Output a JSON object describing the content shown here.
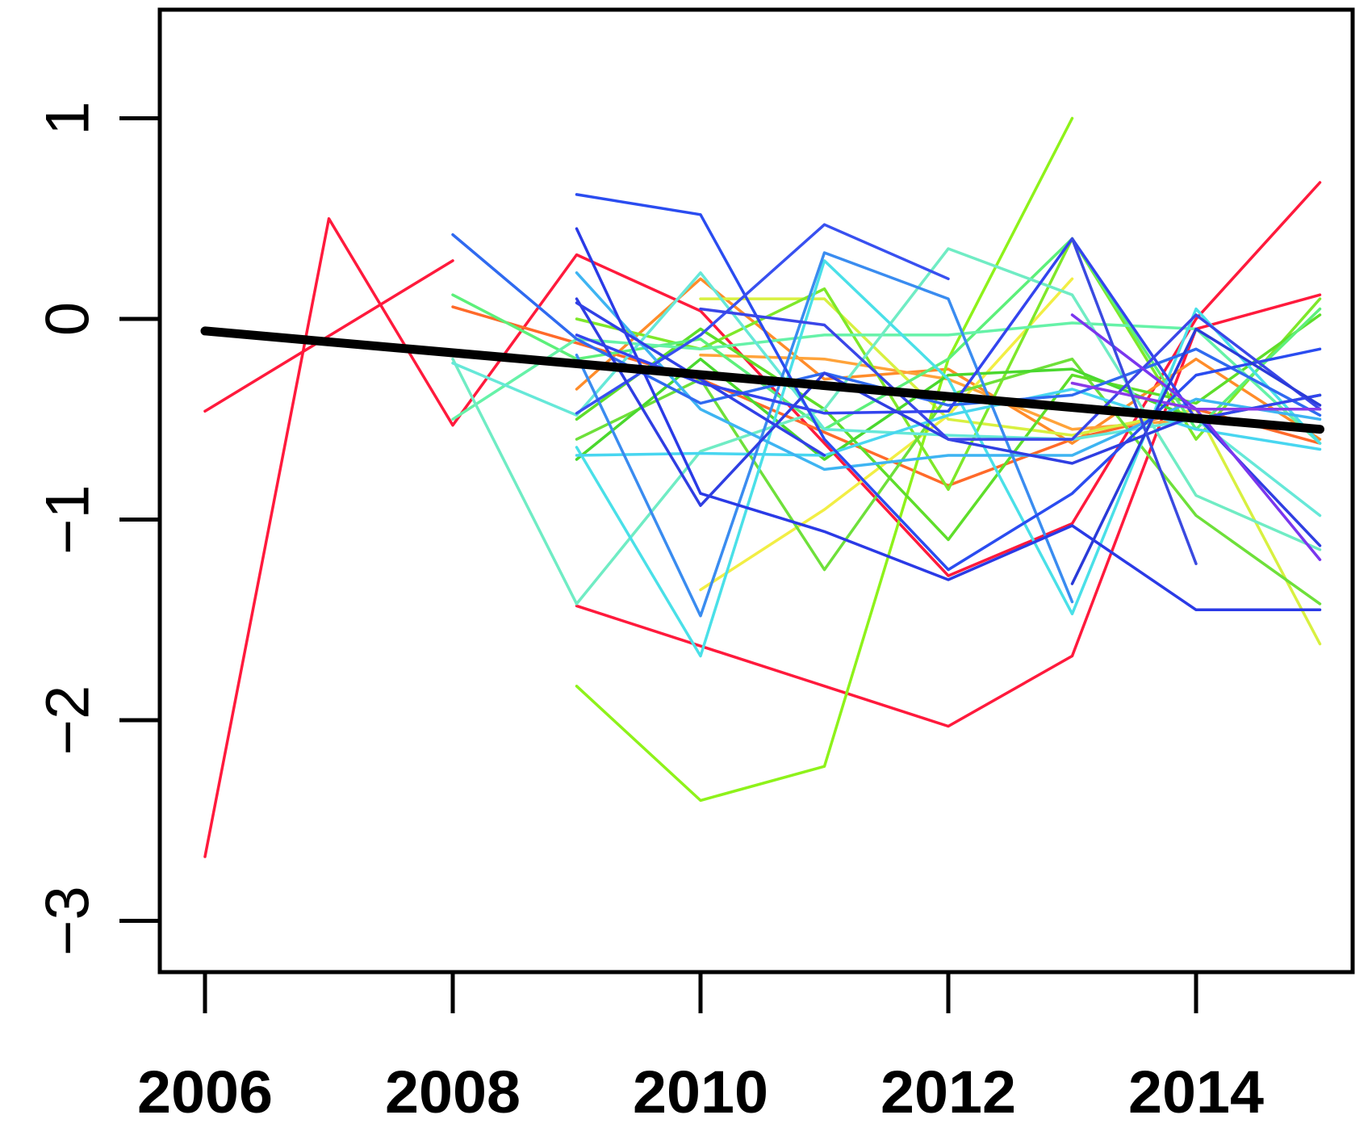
{
  "chart_data": {
    "type": "line",
    "title": "",
    "xlabel": "",
    "ylabel": "",
    "xlim": [
      2005.8,
      2015.4
    ],
    "ylim": [
      -3.2,
      1.6
    ],
    "grid": false,
    "legend": "none",
    "x_ticks": [
      2006,
      2008,
      2010,
      2012,
      2014
    ],
    "x_tick_labels": [
      "2006",
      "2008",
      "2010",
      "2012",
      "2014"
    ],
    "y_ticks": [
      -3,
      -2,
      -1,
      0,
      1
    ],
    "y_tick_labels": [
      "−3",
      "−2",
      "−1",
      "0",
      "1"
    ],
    "trend": {
      "color": "#000000",
      "points": [
        [
          2006,
          -0.06
        ],
        [
          2015,
          -0.55
        ]
      ]
    },
    "series": [
      {
        "color": "#ff1a3c",
        "points": [
          [
            2006,
            -2.68
          ],
          [
            2007,
            0.5
          ],
          [
            2008,
            -0.53
          ],
          [
            2009,
            0.32
          ],
          [
            2010,
            0.04
          ],
          [
            2012,
            -1.28
          ],
          [
            2013,
            -1.02
          ],
          [
            2014,
            0.0
          ],
          [
            2015,
            0.68
          ]
        ]
      },
      {
        "color": "#ff1a3c",
        "points": [
          [
            2006,
            -0.46
          ],
          [
            2008,
            0.29
          ]
        ]
      },
      {
        "color": "#ff1a3c",
        "points": [
          [
            2009,
            -1.43
          ],
          [
            2012,
            -2.03
          ],
          [
            2013,
            -1.68
          ],
          [
            2014,
            -0.05
          ],
          [
            2015,
            0.12
          ]
        ]
      },
      {
        "color": "#ff6a2a",
        "points": [
          [
            2008,
            0.06
          ],
          [
            2009,
            -0.12
          ],
          [
            2010,
            -0.3
          ],
          [
            2012,
            -0.83
          ],
          [
            2013,
            -0.6
          ],
          [
            2014,
            -0.45
          ],
          [
            2015,
            -0.62
          ]
        ]
      },
      {
        "color": "#ff8c2a",
        "points": [
          [
            2009,
            -0.35
          ],
          [
            2010,
            0.2
          ],
          [
            2011,
            -0.3
          ],
          [
            2012,
            -0.25
          ],
          [
            2013,
            -0.62
          ],
          [
            2014,
            -0.2
          ],
          [
            2015,
            -0.6
          ]
        ]
      },
      {
        "color": "#ffa33a",
        "points": [
          [
            2010,
            -0.18
          ],
          [
            2011,
            -0.2
          ],
          [
            2012,
            -0.3
          ],
          [
            2013,
            -0.55
          ],
          [
            2014,
            -0.5
          ]
        ]
      },
      {
        "color": "#f2ee44",
        "points": [
          [
            2010,
            -1.35
          ],
          [
            2011,
            -0.95
          ],
          [
            2012,
            -0.48
          ],
          [
            2013,
            0.2
          ]
        ]
      },
      {
        "color": "#d8f040",
        "points": [
          [
            2010,
            0.1
          ],
          [
            2011,
            0.1
          ],
          [
            2012,
            -0.5
          ],
          [
            2013,
            -0.58
          ],
          [
            2014,
            -0.45
          ],
          [
            2015,
            -1.62
          ]
        ]
      },
      {
        "color": "#8ef21a",
        "points": [
          [
            2009,
            -1.83
          ],
          [
            2010,
            -2.4
          ],
          [
            2011,
            -2.23
          ],
          [
            2012,
            -0.2
          ],
          [
            2013,
            1.0
          ]
        ]
      },
      {
        "color": "#7ee82a",
        "points": [
          [
            2009,
            0.0
          ],
          [
            2010,
            -0.15
          ],
          [
            2011,
            0.15
          ],
          [
            2012,
            -0.85
          ],
          [
            2013,
            0.4
          ],
          [
            2014,
            -0.6
          ],
          [
            2015,
            0.1
          ]
        ]
      },
      {
        "color": "#6ee03a",
        "points": [
          [
            2009,
            -0.6
          ],
          [
            2010,
            -0.3
          ],
          [
            2011,
            -1.25
          ],
          [
            2012,
            -0.38
          ],
          [
            2013,
            -0.2
          ],
          [
            2014,
            -0.98
          ],
          [
            2015,
            -1.42
          ]
        ]
      },
      {
        "color": "#5ede2a",
        "points": [
          [
            2009,
            -0.5
          ],
          [
            2010,
            -0.05
          ],
          [
            2011,
            -0.45
          ],
          [
            2012,
            -1.1
          ],
          [
            2013,
            -0.28
          ],
          [
            2014,
            -0.42
          ],
          [
            2015,
            0.02
          ]
        ]
      },
      {
        "color": "#4ad82e",
        "points": [
          [
            2009,
            -0.7
          ],
          [
            2010,
            -0.2
          ],
          [
            2011,
            -0.7
          ],
          [
            2012,
            -0.28
          ],
          [
            2013,
            -0.25
          ],
          [
            2014,
            -0.5
          ],
          [
            2015,
            -0.38
          ]
        ]
      },
      {
        "color": "#5cf07a",
        "points": [
          [
            2008,
            0.12
          ],
          [
            2009,
            -0.2
          ],
          [
            2010,
            -0.1
          ],
          [
            2011,
            -0.55
          ],
          [
            2012,
            -0.2
          ],
          [
            2013,
            0.4
          ],
          [
            2014,
            -0.55
          ],
          [
            2015,
            0.05
          ]
        ]
      },
      {
        "color": "#66f2a8",
        "points": [
          [
            2008,
            -0.5
          ],
          [
            2009,
            -0.1
          ],
          [
            2010,
            -0.15
          ],
          [
            2011,
            -0.08
          ],
          [
            2012,
            -0.08
          ],
          [
            2013,
            -0.02
          ],
          [
            2014,
            -0.05
          ],
          [
            2015,
            -0.62
          ]
        ]
      },
      {
        "color": "#70ecc4",
        "points": [
          [
            2008,
            -0.2
          ],
          [
            2009,
            -1.42
          ],
          [
            2010,
            -0.66
          ],
          [
            2011,
            -0.45
          ],
          [
            2012,
            0.35
          ],
          [
            2013,
            0.12
          ],
          [
            2014,
            -0.88
          ],
          [
            2015,
            -1.15
          ]
        ]
      },
      {
        "color": "#66e8d8",
        "points": [
          [
            2008,
            -0.22
          ],
          [
            2009,
            -0.48
          ],
          [
            2010,
            0.23
          ],
          [
            2011,
            -0.55
          ],
          [
            2012,
            -0.58
          ],
          [
            2013,
            -0.6
          ],
          [
            2014,
            -0.5
          ],
          [
            2015,
            -0.98
          ]
        ]
      },
      {
        "color": "#4ae0e8",
        "points": [
          [
            2009,
            -0.64
          ],
          [
            2010,
            -1.68
          ],
          [
            2011,
            0.29
          ],
          [
            2012,
            -0.3
          ],
          [
            2013,
            -1.47
          ],
          [
            2014,
            0.05
          ],
          [
            2015,
            -0.62
          ]
        ]
      },
      {
        "color": "#48d6f0",
        "points": [
          [
            2009,
            -0.68
          ],
          [
            2010,
            -0.67
          ],
          [
            2011,
            -0.68
          ],
          [
            2012,
            -0.48
          ],
          [
            2013,
            -0.35
          ],
          [
            2014,
            -0.55
          ],
          [
            2015,
            -0.65
          ]
        ]
      },
      {
        "color": "#3eb4f2",
        "points": [
          [
            2009,
            0.23
          ],
          [
            2010,
            -0.45
          ],
          [
            2011,
            -0.75
          ],
          [
            2012,
            -0.68
          ],
          [
            2013,
            -0.68
          ],
          [
            2014,
            -0.4
          ],
          [
            2015,
            -0.5
          ]
        ]
      },
      {
        "color": "#3a8cf0",
        "points": [
          [
            2009,
            -0.18
          ],
          [
            2010,
            -1.48
          ],
          [
            2011,
            0.33
          ],
          [
            2012,
            0.1
          ],
          [
            2013,
            -1.41
          ]
        ]
      },
      {
        "color": "#2f6af0",
        "points": [
          [
            2008,
            0.42
          ],
          [
            2009,
            -0.1
          ],
          [
            2010,
            -0.42
          ],
          [
            2011,
            -0.27
          ],
          [
            2012,
            -0.43
          ],
          [
            2013,
            -0.38
          ],
          [
            2014,
            -0.15
          ],
          [
            2015,
            -0.48
          ]
        ]
      },
      {
        "color": "#2a4cf0",
        "points": [
          [
            2009,
            0.62
          ],
          [
            2010,
            0.52
          ],
          [
            2011,
            -0.6
          ],
          [
            2012,
            -1.25
          ],
          [
            2013,
            -0.87
          ],
          [
            2014,
            -0.28
          ],
          [
            2015,
            -0.15
          ]
        ]
      },
      {
        "color": "#2a3ae6",
        "points": [
          [
            2009,
            0.45
          ],
          [
            2010,
            -0.87
          ],
          [
            2011,
            -1.06
          ],
          [
            2012,
            -1.3
          ],
          [
            2013,
            -1.03
          ],
          [
            2014,
            -1.45
          ],
          [
            2015,
            -1.45
          ]
        ]
      },
      {
        "color": "#3344ee",
        "points": [
          [
            2009,
            -0.08
          ],
          [
            2010,
            -0.32
          ],
          [
            2011,
            -0.47
          ],
          [
            2012,
            -0.46
          ],
          [
            2013,
            0.4
          ],
          [
            2014,
            -0.5
          ],
          [
            2015,
            -0.38
          ]
        ]
      },
      {
        "color": "#3850f0",
        "points": [
          [
            2009,
            -0.47
          ],
          [
            2010,
            -0.08
          ],
          [
            2011,
            0.47
          ],
          [
            2012,
            0.2
          ]
        ]
      },
      {
        "color": "#2f3ee2",
        "points": [
          [
            2009,
            0.1
          ],
          [
            2010,
            -0.93
          ],
          [
            2011,
            -0.27
          ],
          [
            2012,
            -0.6
          ],
          [
            2013,
            -0.72
          ],
          [
            2014,
            -0.48
          ],
          [
            2015,
            -1.13
          ]
        ]
      },
      {
        "color": "#3040e6",
        "points": [
          [
            2009,
            0.08
          ],
          [
            2011,
            -0.68
          ]
        ]
      },
      {
        "color": "#3a46e8",
        "points": [
          [
            2010,
            0.05
          ],
          [
            2011,
            -0.03
          ],
          [
            2012,
            -0.6
          ],
          [
            2013,
            -0.6
          ],
          [
            2014,
            0.02
          ],
          [
            2015,
            -0.45
          ]
        ]
      },
      {
        "color": "#7a36ee",
        "points": [
          [
            2013,
            0.02
          ],
          [
            2014,
            -0.45
          ],
          [
            2015,
            -1.2
          ]
        ]
      },
      {
        "color": "#8a3ae8",
        "points": [
          [
            2013,
            -0.32
          ],
          [
            2014,
            -0.45
          ],
          [
            2015,
            -0.45
          ]
        ]
      },
      {
        "color": "#2a3ad8",
        "points": [
          [
            2013,
            -1.32
          ],
          [
            2014,
            -0.05
          ],
          [
            2015,
            -0.43
          ]
        ]
      },
      {
        "color": "#3a4ae0",
        "points": [
          [
            2013,
            0.4
          ],
          [
            2014,
            -1.22
          ]
        ]
      }
    ]
  }
}
